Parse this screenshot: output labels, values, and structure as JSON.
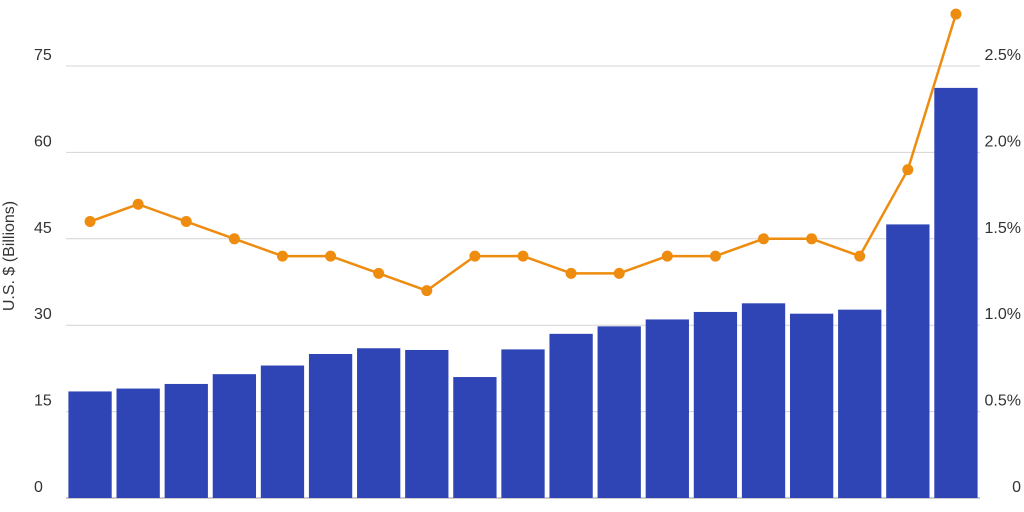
{
  "chart_data": {
    "type": "bar",
    "categories": [
      "",
      "",
      "",
      "",
      "",
      "",
      "",
      "",
      "",
      "",
      "",
      "",
      "",
      "",
      "",
      "",
      "",
      "",
      ""
    ],
    "series": [
      {
        "type": "bar",
        "axis": "left",
        "color": "#3045b5",
        "values": [
          18.5,
          19,
          19.8,
          21.5,
          23,
          25,
          26,
          25.7,
          21,
          25.8,
          28.5,
          29.8,
          31,
          32.3,
          33.8,
          32,
          32.7,
          47.5,
          71.2
        ]
      },
      {
        "type": "line",
        "axis": "right",
        "color": "#ee8c0f",
        "values": [
          1.6,
          1.7,
          1.6,
          1.5,
          1.4,
          1.4,
          1.3,
          1.2,
          1.4,
          1.4,
          1.3,
          1.3,
          1.4,
          1.4,
          1.5,
          1.5,
          1.4,
          1.9,
          2.8
        ]
      }
    ],
    "ylabel": "U.S. $ (Billions)",
    "ylim": [
      0,
      81
    ],
    "y2lim": [
      0,
      2.84
    ],
    "yticks": [
      {
        "value": 0,
        "label": "0"
      },
      {
        "value": 15,
        "label": "15"
      },
      {
        "value": 30,
        "label": "30"
      },
      {
        "value": 45,
        "label": "45"
      },
      {
        "value": 60,
        "label": "60"
      },
      {
        "value": 75,
        "label": "75"
      }
    ],
    "y2ticks": [
      {
        "value": 0,
        "label": "0"
      },
      {
        "value": 0.5,
        "label": "0.5%"
      },
      {
        "value": 1.0,
        "label": "1.0%"
      },
      {
        "value": 1.5,
        "label": "1.5%"
      },
      {
        "value": 2.0,
        "label": "2.0%"
      },
      {
        "value": 2.5,
        "label": "2.5%"
      }
    ],
    "grid": true,
    "legend": "none"
  }
}
